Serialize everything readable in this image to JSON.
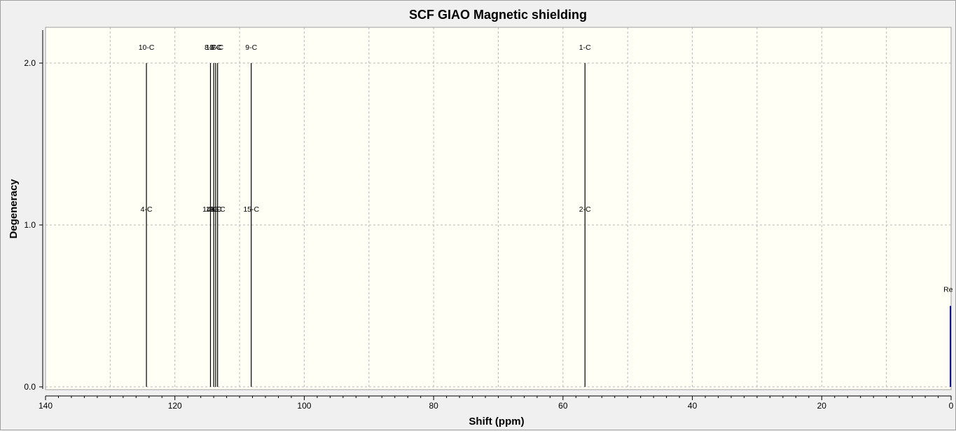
{
  "chart_data": {
    "type": "bar",
    "title": "SCF GIAO Magnetic shielding",
    "xlabel": "Shift (ppm)",
    "ylabel": "Degeneracy",
    "x_reversed": true,
    "xlim": [
      140,
      0
    ],
    "ylim": [
      0,
      2.2
    ],
    "x_ticks": [
      "140",
      "120",
      "100",
      "80",
      "60",
      "40",
      "20",
      "0"
    ],
    "x_tick_values": [
      140,
      120,
      100,
      80,
      60,
      40,
      20,
      0
    ],
    "y_ticks": [
      "0.0",
      "1.0",
      "2.0"
    ],
    "y_tick_values": [
      0.0,
      1.0,
      2.0
    ],
    "grid": true,
    "plot_background": "#fffff5",
    "line_color": "#000000",
    "reference_color": "#00008b",
    "peaks": [
      {
        "shift": 124.4,
        "degeneracy": 2,
        "labels": [
          "10-C",
          "4-C"
        ]
      },
      {
        "shift": 114.5,
        "degeneracy": 2,
        "labels": [
          "8-C",
          "14-C"
        ]
      },
      {
        "shift": 114.0,
        "degeneracy": 2,
        "labels": [
          "12-C",
          "13-C"
        ]
      },
      {
        "shift": 113.7,
        "degeneracy": 2,
        "labels": [
          "5-C",
          "6-C"
        ]
      },
      {
        "shift": 113.4,
        "degeneracy": 2,
        "labels": [
          "7-C",
          "11-C"
        ]
      },
      {
        "shift": 108.2,
        "degeneracy": 2,
        "labels": [
          "9-C",
          "15-C"
        ]
      },
      {
        "shift": 56.6,
        "degeneracy": 2,
        "labels": [
          "1-C",
          "2-C"
        ]
      }
    ],
    "reference": {
      "shift": 0.1,
      "value": 0.5,
      "label": "Re"
    }
  }
}
